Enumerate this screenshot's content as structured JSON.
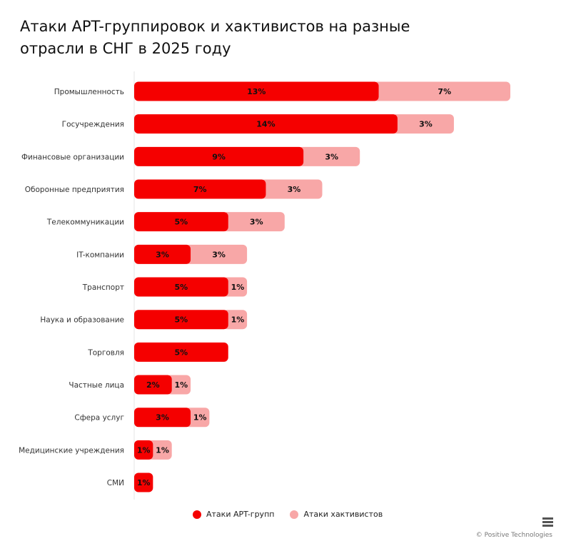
{
  "chart_data": {
    "type": "bar",
    "orientation": "horizontal",
    "stacked": true,
    "title": "Атаки APT-группировок и хактивистов на разные отрасли в СНГ в 2025 году",
    "categories": [
      "Промышленность",
      "Госучреждения",
      "Финансовые организации",
      "Оборонные предприятия",
      "Телекоммуникации",
      "IT-компании",
      "Транспорт",
      "Наука и образование",
      "Торговля",
      "Частные лица",
      "Сфера услуг",
      "Медицинские учреждения",
      "СМИ"
    ],
    "series": [
      {
        "name": "Атаки APT-групп",
        "color": "#f50000",
        "values": [
          13,
          14,
          9,
          7,
          5,
          3,
          5,
          5,
          5,
          2,
          3,
          1,
          1
        ]
      },
      {
        "name": "Атаки хактивистов",
        "color": "#f8a7a7",
        "values": [
          7,
          3,
          3,
          3,
          3,
          3,
          1,
          1,
          null,
          1,
          1,
          1,
          null
        ]
      }
    ],
    "value_suffix": "%",
    "legend_position": "bottom",
    "grid": false
  },
  "credit": "© Positive Technologies"
}
